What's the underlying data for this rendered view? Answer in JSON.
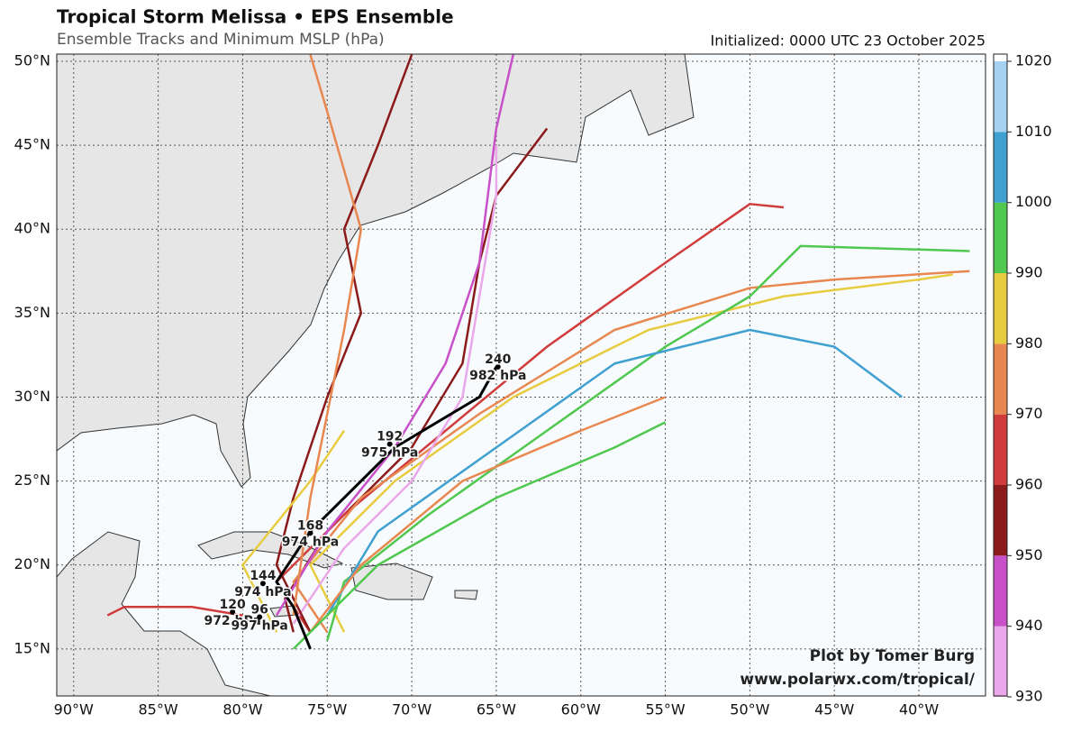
{
  "map": {
    "title": "Tropical Storm Melissa • EPS Ensemble",
    "subtitle": "Ensemble Tracks and Minimum MSLP (hPa)",
    "initialized": "Initialized: 0000 UTC 23 October 2025",
    "credit": [
      "Plot by Tomer Burg",
      "www.polarwx.com/tropical/"
    ],
    "lonlim": [
      -91,
      -36.06
    ],
    "latlim": [
      12.2,
      50.43
    ],
    "lonticks": [
      {
        "value": -90,
        "label": "90°W"
      },
      {
        "value": -85,
        "label": "85°W"
      },
      {
        "value": -80,
        "label": "80°W"
      },
      {
        "value": -75,
        "label": "75°W"
      },
      {
        "value": -70,
        "label": "70°W"
      },
      {
        "value": -65,
        "label": "65°W"
      },
      {
        "value": -60,
        "label": "60°W"
      },
      {
        "value": -55,
        "label": "55°W"
      },
      {
        "value": -50,
        "label": "50°W"
      },
      {
        "value": -45,
        "label": "45°W"
      },
      {
        "value": -40,
        "label": "40°W"
      }
    ],
    "latticks": [
      {
        "value": 15,
        "label": "15°N"
      },
      {
        "value": 20,
        "label": "20°N"
      },
      {
        "value": 25,
        "label": "25°N"
      },
      {
        "value": 30,
        "label": "30°N"
      },
      {
        "value": 35,
        "label": "35°N"
      },
      {
        "value": 40,
        "label": "40°N"
      },
      {
        "value": 45,
        "label": "45°N"
      },
      {
        "value": 50,
        "label": "50°N"
      }
    ],
    "colorbar": {
      "levels": [
        930,
        940,
        950,
        960,
        970,
        980,
        990,
        1000,
        1010,
        1020
      ],
      "colors": [
        "#eaa8ea",
        "#c850c8",
        "#8b1a1a",
        "#d03c3c",
        "#e88850",
        "#e8cc40",
        "#50c850",
        "#40a0d0",
        "#a4d2f0"
      ]
    },
    "tracks": [
      {
        "color": "#8b1a1a",
        "lon": [
          -77,
          -77.5,
          -75,
          -70,
          -67,
          -66,
          -65,
          -62
        ],
        "lat": [
          16,
          18,
          22,
          27,
          32,
          38,
          42,
          46
        ]
      },
      {
        "color": "#d03c3c",
        "lon": [
          -76,
          -78,
          -74,
          -68,
          -62,
          -55,
          -50,
          -48
        ],
        "lat": [
          16,
          19,
          23,
          28,
          33,
          38,
          41.5,
          41.3
        ]
      },
      {
        "color": "#e88850",
        "lon": [
          -75,
          -77,
          -73,
          -66,
          -58,
          -50,
          -45,
          -37
        ],
        "lat": [
          16,
          19,
          24,
          29,
          34,
          36.5,
          37,
          37.5
        ]
      },
      {
        "color": "#e8cc40",
        "lon": [
          -74,
          -76,
          -71,
          -64,
          -56,
          -48,
          -40,
          -38
        ],
        "lat": [
          16,
          20,
          25,
          30,
          34,
          36,
          37,
          37.3
        ]
      },
      {
        "color": "#50c850",
        "lon": [
          -75,
          -74,
          -69,
          -62,
          -55,
          -50,
          -47,
          -37
        ],
        "lat": [
          15.5,
          19,
          23,
          28,
          33,
          36,
          39,
          38.7
        ]
      },
      {
        "color": "#40a0d0",
        "lon": [
          -75,
          -72,
          -65,
          -58,
          -50,
          -45,
          -41
        ],
        "lat": [
          17,
          22,
          27,
          32,
          34,
          33,
          30
        ]
      },
      {
        "color": "#c850c8",
        "lon": [
          -78,
          -75,
          -71,
          -68,
          -66,
          -65,
          -64
        ],
        "lat": [
          17,
          22,
          27,
          32,
          38,
          46,
          50.4
        ]
      },
      {
        "color": "#eaa8ea",
        "lon": [
          -77,
          -74,
          -70,
          -67,
          -66,
          -65,
          -65
        ],
        "lat": [
          16.5,
          21,
          25,
          30,
          36,
          42,
          45
        ]
      },
      {
        "color": "#8b1a1a",
        "lon": [
          -76,
          -78,
          -77,
          -75,
          -73,
          -74,
          -72,
          -70
        ],
        "lat": [
          16,
          20,
          24,
          30,
          35,
          40,
          45,
          50.4
        ]
      },
      {
        "color": "#d03c3c",
        "lon": [
          -80,
          -83,
          -87,
          -88
        ],
        "lat": [
          17,
          17.5,
          17.5,
          17
        ]
      },
      {
        "color": "#e88850",
        "lon": [
          -76,
          -73,
          -67,
          -60,
          -55
        ],
        "lat": [
          16,
          20,
          25,
          28,
          30
        ]
      },
      {
        "color": "#50c850",
        "lon": [
          -77,
          -72,
          -65,
          -58,
          -55
        ],
        "lat": [
          15,
          20,
          24,
          27,
          28.5
        ]
      },
      {
        "color": "#e8cc40",
        "lon": [
          -78,
          -80,
          -76,
          -74
        ],
        "lat": [
          16,
          20,
          25,
          28
        ]
      },
      {
        "color": "#e88850",
        "lon": [
          -77,
          -76,
          -74,
          -73,
          -75,
          -76
        ],
        "lat": [
          17,
          24,
          34,
          40,
          47,
          50.4
        ]
      }
    ],
    "mean_track": {
      "lon": [
        -76,
        -77,
        -78,
        -76,
        -71,
        -66,
        -65
      ],
      "lat": [
        15,
        17.5,
        19,
        22,
        27,
        30,
        31.8
      ]
    },
    "track_labels": [
      {
        "hour": 240,
        "pressure": "982 hPa",
        "lon": -64.9,
        "lat": 31.8
      },
      {
        "hour": 192,
        "pressure": "975 hPa",
        "lon": -71.3,
        "lat": 27.2
      },
      {
        "hour": 168,
        "pressure": "974 hPa",
        "lon": -76.0,
        "lat": 21.9
      },
      {
        "hour": 144,
        "pressure": "974 hPa",
        "lon": -78.8,
        "lat": 18.9
      },
      {
        "hour": 120,
        "pressure": "972 hPa",
        "lon": -80.6,
        "lat": 17.2
      },
      {
        "hour": 96,
        "pressure": "997 hPa",
        "lon": -79.0,
        "lat": 16.9
      }
    ]
  }
}
